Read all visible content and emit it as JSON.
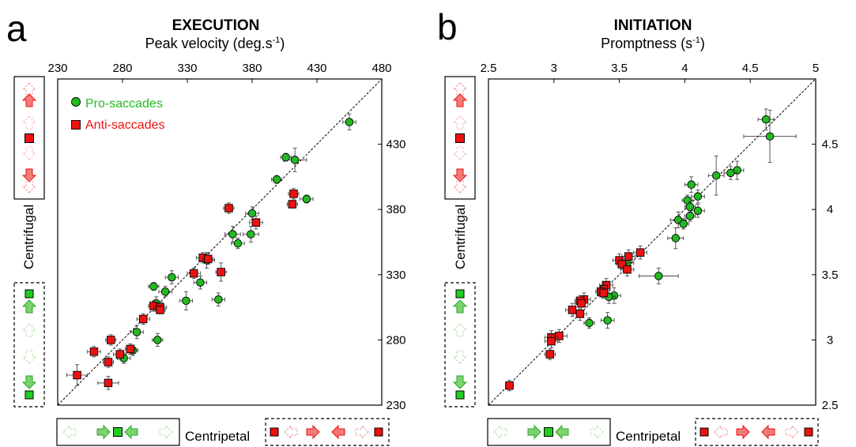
{
  "panels": [
    {
      "letter": "a",
      "title": "EXECUTION",
      "subtitle_main": "Peak velocity (deg.s",
      "subtitle_sup": "-1",
      "subtitle_end": ")",
      "ylabel": "Centrifugal",
      "xlabel": "Centripetal",
      "legend": [
        {
          "label": "Pro-saccades",
          "color": "#22bb22",
          "marker": "circle"
        },
        {
          "label": "Anti-saccades",
          "color": "#ee1111",
          "marker": "square"
        }
      ]
    },
    {
      "letter": "b",
      "title": "INITIATION",
      "subtitle_main": "Promptness (s",
      "subtitle_sup": "-1",
      "subtitle_end": ")",
      "ylabel": "Centrifugal",
      "xlabel": "Centripetal",
      "legend": []
    }
  ],
  "colors": {
    "pro": "#22bb22",
    "anti": "#ee1111",
    "pale_red": "#f47a7a",
    "pale_green": "#7ed26f"
  },
  "chart_data": [
    {
      "type": "scatter",
      "title": "EXECUTION",
      "subtitle": "Peak velocity (deg.s-1)",
      "xlabel": "Centripetal",
      "ylabel": "Centrifugal",
      "xlim": [
        230,
        480
      ],
      "ylim": [
        230,
        480
      ],
      "xticks": [
        "230",
        "280",
        "330",
        "380",
        "430",
        "480"
      ],
      "yticks": [
        "230",
        "280",
        "330",
        "380",
        "430"
      ],
      "identity_line": true,
      "series": [
        {
          "name": "Pro-saccades",
          "marker": "circle",
          "color": "#22bb22",
          "points": [
            {
              "x": 455,
              "y": 447,
              "xerr": 5,
              "yerr": 6
            },
            {
              "x": 413,
              "y": 418,
              "xerr": 9,
              "yerr": 9
            },
            {
              "x": 406,
              "y": 420,
              "xerr": 4,
              "yerr": 3
            },
            {
              "x": 399,
              "y": 403,
              "xerr": 4,
              "yerr": 3
            },
            {
              "x": 422,
              "y": 388,
              "xerr": 5,
              "yerr": 3
            },
            {
              "x": 380,
              "y": 377,
              "xerr": 5,
              "yerr": 5
            },
            {
              "x": 365,
              "y": 361,
              "xerr": 6,
              "yerr": 6
            },
            {
              "x": 379,
              "y": 361,
              "xerr": 6,
              "yerr": 6
            },
            {
              "x": 369,
              "y": 354,
              "xerr": 5,
              "yerr": 4
            },
            {
              "x": 345,
              "y": 341,
              "xerr": 6,
              "yerr": 6
            },
            {
              "x": 340,
              "y": 324,
              "xerr": 5,
              "yerr": 5
            },
            {
              "x": 318,
              "y": 328,
              "xerr": 5,
              "yerr": 5
            },
            {
              "x": 304,
              "y": 321,
              "xerr": 4,
              "yerr": 3
            },
            {
              "x": 313,
              "y": 317,
              "xerr": 5,
              "yerr": 4
            },
            {
              "x": 329,
              "y": 310,
              "xerr": 5,
              "yerr": 7
            },
            {
              "x": 306,
              "y": 308,
              "xerr": 5,
              "yerr": 5
            },
            {
              "x": 354,
              "y": 311,
              "xerr": 5,
              "yerr": 5
            },
            {
              "x": 291,
              "y": 286,
              "xerr": 5,
              "yerr": 5
            },
            {
              "x": 307,
              "y": 280,
              "xerr": 4,
              "yerr": 5
            },
            {
              "x": 288,
              "y": 272,
              "xerr": 4,
              "yerr": 4
            },
            {
              "x": 281,
              "y": 266,
              "xerr": 5,
              "yerr": 4
            }
          ]
        },
        {
          "name": "Anti-saccades",
          "marker": "square",
          "color": "#ee1111",
          "points": [
            {
              "x": 412,
              "y": 392,
              "xerr": 4,
              "yerr": 4
            },
            {
              "x": 411,
              "y": 384,
              "xerr": 4,
              "yerr": 3
            },
            {
              "x": 362,
              "y": 381,
              "xerr": 4,
              "yerr": 4
            },
            {
              "x": 383,
              "y": 370,
              "xerr": 5,
              "yerr": 5
            },
            {
              "x": 342,
              "y": 343,
              "xerr": 5,
              "yerr": 4
            },
            {
              "x": 346,
              "y": 342,
              "xerr": 4,
              "yerr": 4
            },
            {
              "x": 356,
              "y": 332,
              "xerr": 4,
              "yerr": 7
            },
            {
              "x": 335,
              "y": 331,
              "xerr": 5,
              "yerr": 4
            },
            {
              "x": 304,
              "y": 306,
              "xerr": 4,
              "yerr": 4
            },
            {
              "x": 309,
              "y": 305,
              "xerr": 5,
              "yerr": 4
            },
            {
              "x": 309,
              "y": 303,
              "xerr": 4,
              "yerr": 3
            },
            {
              "x": 296,
              "y": 296,
              "xerr": 5,
              "yerr": 4
            },
            {
              "x": 271,
              "y": 280,
              "xerr": 4,
              "yerr": 4
            },
            {
              "x": 286,
              "y": 273,
              "xerr": 4,
              "yerr": 4
            },
            {
              "x": 258,
              "y": 271,
              "xerr": 5,
              "yerr": 4
            },
            {
              "x": 278,
              "y": 269,
              "xerr": 5,
              "yerr": 4
            },
            {
              "x": 269,
              "y": 263,
              "xerr": 4,
              "yerr": 4
            },
            {
              "x": 245,
              "y": 253,
              "xerr": 8,
              "yerr": 8
            },
            {
              "x": 269,
              "y": 247,
              "xerr": 8,
              "yerr": 5
            }
          ]
        }
      ]
    },
    {
      "type": "scatter",
      "title": "INITIATION",
      "subtitle": "Promptness (s-1)",
      "xlabel": "Centripetal",
      "ylabel": "Centrifugal",
      "xlim": [
        2.5,
        5
      ],
      "ylim": [
        2.5,
        5
      ],
      "xticks": [
        "2.5",
        "3",
        "3.5",
        "4",
        "4.5",
        "5"
      ],
      "yticks": [
        "2.5",
        "3",
        "3.5",
        "4",
        "4.5"
      ],
      "identity_line": true,
      "series": [
        {
          "name": "Pro-saccades",
          "marker": "circle",
          "color": "#22bb22",
          "points": [
            {
              "x": 4.62,
              "y": 4.69,
              "xerr": 0.06,
              "yerr": 0.08
            },
            {
              "x": 4.65,
              "y": 4.56,
              "xerr": 0.2,
              "yerr": 0.2
            },
            {
              "x": 4.4,
              "y": 4.3,
              "xerr": 0.05,
              "yerr": 0.07
            },
            {
              "x": 4.35,
              "y": 4.28,
              "xerr": 0.05,
              "yerr": 0.05
            },
            {
              "x": 4.24,
              "y": 4.26,
              "xerr": 0.06,
              "yerr": 0.15
            },
            {
              "x": 4.05,
              "y": 4.19,
              "xerr": 0.05,
              "yerr": 0.06
            },
            {
              "x": 4.1,
              "y": 4.1,
              "xerr": 0.05,
              "yerr": 0.05
            },
            {
              "x": 4.02,
              "y": 4.07,
              "xerr": 0.04,
              "yerr": 0.04
            },
            {
              "x": 4.04,
              "y": 4.02,
              "xerr": 0.04,
              "yerr": 0.04
            },
            {
              "x": 4.1,
              "y": 3.99,
              "xerr": 0.05,
              "yerr": 0.05
            },
            {
              "x": 4.04,
              "y": 3.95,
              "xerr": 0.04,
              "yerr": 0.04
            },
            {
              "x": 3.95,
              "y": 3.92,
              "xerr": 0.06,
              "yerr": 0.06
            },
            {
              "x": 3.99,
              "y": 3.89,
              "xerr": 0.04,
              "yerr": 0.04
            },
            {
              "x": 3.93,
              "y": 3.78,
              "xerr": 0.06,
              "yerr": 0.08
            },
            {
              "x": 3.8,
              "y": 3.49,
              "xerr": 0.15,
              "yerr": 0.06
            },
            {
              "x": 3.56,
              "y": 3.59,
              "xerr": 0.05,
              "yerr": 0.05
            },
            {
              "x": 3.46,
              "y": 3.34,
              "xerr": 0.05,
              "yerr": 0.06
            },
            {
              "x": 3.42,
              "y": 3.33,
              "xerr": 0.05,
              "yerr": 0.05
            },
            {
              "x": 3.41,
              "y": 3.15,
              "xerr": 0.05,
              "yerr": 0.06
            },
            {
              "x": 3.27,
              "y": 3.13,
              "xerr": 0.04,
              "yerr": 0.04
            }
          ]
        },
        {
          "name": "Anti-saccades",
          "marker": "square",
          "color": "#ee1111",
          "points": [
            {
              "x": 3.66,
              "y": 3.67,
              "xerr": 0.05,
              "yerr": 0.05
            },
            {
              "x": 3.57,
              "y": 3.64,
              "xerr": 0.05,
              "yerr": 0.05
            },
            {
              "x": 3.5,
              "y": 3.61,
              "xerr": 0.05,
              "yerr": 0.05
            },
            {
              "x": 3.52,
              "y": 3.58,
              "xerr": 0.04,
              "yerr": 0.04
            },
            {
              "x": 3.56,
              "y": 3.54,
              "xerr": 0.05,
              "yerr": 0.05
            },
            {
              "x": 3.4,
              "y": 3.42,
              "xerr": 0.05,
              "yerr": 0.05
            },
            {
              "x": 3.38,
              "y": 3.39,
              "xerr": 0.05,
              "yerr": 0.05
            },
            {
              "x": 3.36,
              "y": 3.37,
              "xerr": 0.04,
              "yerr": 0.04
            },
            {
              "x": 3.38,
              "y": 3.36,
              "xerr": 0.04,
              "yerr": 0.04
            },
            {
              "x": 3.23,
              "y": 3.31,
              "xerr": 0.05,
              "yerr": 0.05
            },
            {
              "x": 3.2,
              "y": 3.3,
              "xerr": 0.04,
              "yerr": 0.04
            },
            {
              "x": 3.21,
              "y": 3.28,
              "xerr": 0.05,
              "yerr": 0.05
            },
            {
              "x": 3.14,
              "y": 3.23,
              "xerr": 0.05,
              "yerr": 0.05
            },
            {
              "x": 3.2,
              "y": 3.2,
              "xerr": 0.05,
              "yerr": 0.05
            },
            {
              "x": 3.04,
              "y": 3.03,
              "xerr": 0.06,
              "yerr": 0.05
            },
            {
              "x": 2.98,
              "y": 3.02,
              "xerr": 0.05,
              "yerr": 0.05
            },
            {
              "x": 2.98,
              "y": 2.99,
              "xerr": 0.05,
              "yerr": 0.05
            },
            {
              "x": 2.97,
              "y": 2.89,
              "xerr": 0.04,
              "yerr": 0.04
            },
            {
              "x": 2.66,
              "y": 2.65,
              "xerr": 0.03,
              "yerr": 0.04
            }
          ]
        }
      ]
    }
  ]
}
